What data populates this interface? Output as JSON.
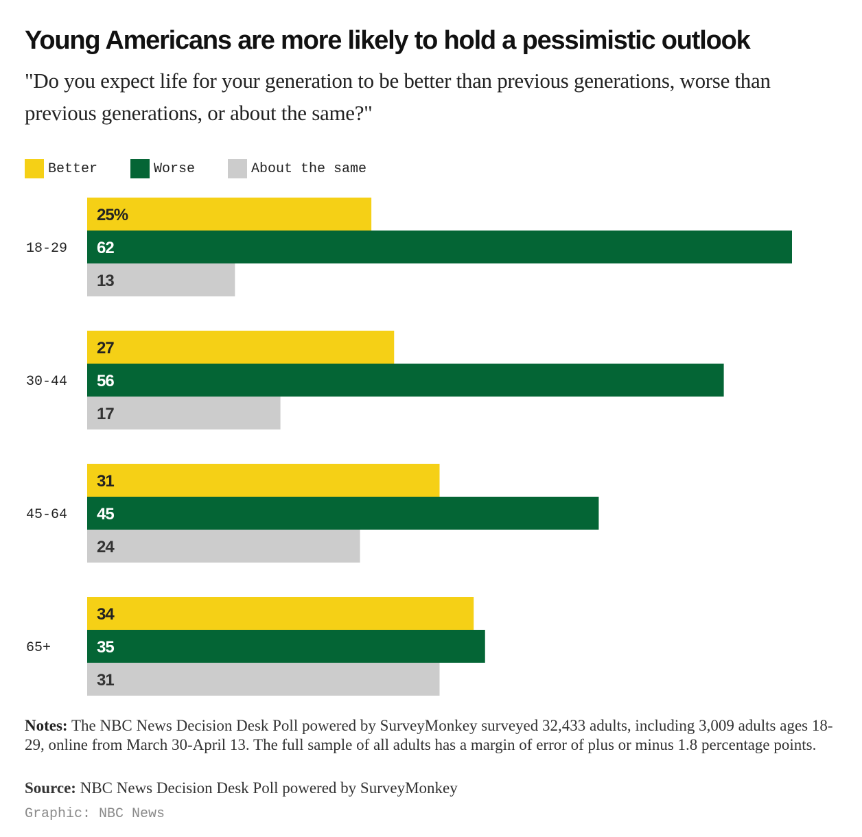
{
  "title": "Young Americans are more likely to hold a pessimistic outlook",
  "subtitle": "\"Do you expect life for your generation to be better than previous generations, worse than previous generations, or about the same?\"",
  "legend": {
    "better": "Better",
    "worse": "Worse",
    "same": "About the same"
  },
  "colors": {
    "better": "#f5d016",
    "worse": "#046535",
    "same": "#cccccc"
  },
  "notes": {
    "label": "Notes:",
    "text": "The NBC News Decision Desk Poll powered by SurveyMonkey surveyed 32,433 adults, including 3,009 adults ages 18-29, online from March 30-April 13. The full sample of all adults has a margin of error of plus or minus 1.8 percentage points."
  },
  "source": {
    "label": "Source:",
    "text": "NBC News Decision Desk Poll powered by SurveyMonkey"
  },
  "credit": "Graphic: NBC News",
  "chart_data": {
    "type": "bar",
    "orientation": "horizontal",
    "categories": [
      "18-29",
      "30-44",
      "45-64",
      "65+"
    ],
    "series": [
      {
        "name": "Better",
        "key": "better",
        "values": [
          25,
          27,
          31,
          34
        ],
        "labels": [
          "25%",
          "27",
          "31",
          "34"
        ]
      },
      {
        "name": "Worse",
        "key": "worse",
        "values": [
          62,
          56,
          45,
          35
        ],
        "labels": [
          "62",
          "56",
          "45",
          "35"
        ]
      },
      {
        "name": "About the same",
        "key": "same",
        "values": [
          13,
          17,
          24,
          31
        ],
        "labels": [
          "13",
          "17",
          "24",
          "31"
        ]
      }
    ],
    "xlim": [
      0,
      62
    ],
    "unit": "%",
    "grid": false,
    "legend_position": "top-left"
  }
}
